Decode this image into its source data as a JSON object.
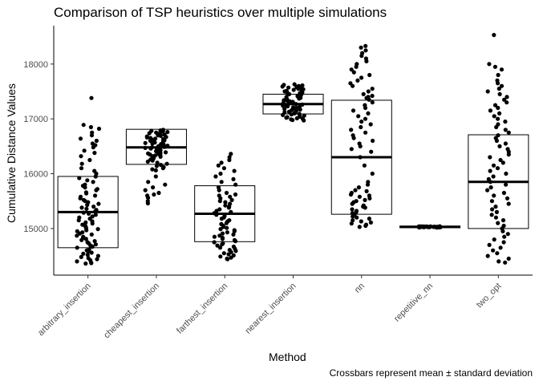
{
  "chart_data": {
    "type": "jitter-crossbar",
    "title": "Comparison of TSP heuristics over multiple simulations",
    "xlabel": "Method",
    "ylabel": "Cumulative Distance Values",
    "caption": "Crossbars represent mean ± standard deviation",
    "ylim": [
      14150,
      18700
    ],
    "yticks": [
      15000,
      16000,
      17000,
      18000
    ],
    "yticklabels": [
      "15000",
      "16000",
      "17000",
      "18000"
    ],
    "grid": false,
    "point_color": "#000000",
    "categories": [
      "arbitrary_insertion",
      "cheapest_insertion",
      "farthest_insertion",
      "nearest_insertion",
      "nn",
      "repetitive_nn",
      "two_opt"
    ],
    "crossbars": [
      {
        "method": "arbitrary_insertion",
        "mean": 15300,
        "ymin": 14650,
        "ymax": 15950
      },
      {
        "method": "cheapest_insertion",
        "mean": 16480,
        "ymin": 16170,
        "ymax": 16810
      },
      {
        "method": "farthest_insertion",
        "mean": 15270,
        "ymin": 14760,
        "ymax": 15780
      },
      {
        "method": "nearest_insertion",
        "mean": 17270,
        "ymin": 17090,
        "ymax": 17450
      },
      {
        "method": "nn",
        "mean": 16300,
        "ymin": 15260,
        "ymax": 17340
      },
      {
        "method": "repetitive_nn",
        "mean": 15030,
        "ymin": 15015,
        "ymax": 15045
      },
      {
        "method": "two_opt",
        "mean": 15850,
        "ymin": 15000,
        "ymax": 16710
      }
    ],
    "points": [
      {
        "method": "arbitrary_insertion",
        "values": [
          17380,
          16890,
          16850,
          16820,
          16750,
          16700,
          16640,
          16600,
          16550,
          16520,
          16480,
          16420,
          16380,
          16320,
          16250,
          16180,
          16100,
          16050,
          16000,
          15950,
          15920,
          15880,
          15850,
          15800,
          15780,
          15750,
          15720,
          15700,
          15660,
          15640,
          15600,
          15580,
          15550,
          15520,
          15500,
          15480,
          15450,
          15430,
          15400,
          15380,
          15360,
          15340,
          15310,
          15290,
          15270,
          15250,
          15220,
          15200,
          15180,
          15150,
          15130,
          15110,
          15090,
          15070,
          15050,
          15030,
          15010,
          14990,
          14970,
          14950,
          14930,
          14910,
          14890,
          14870,
          14850,
          14830,
          14810,
          14790,
          14770,
          14750,
          14730,
          14710,
          14690,
          14670,
          14650,
          14620,
          14600,
          14580,
          14560,
          14540,
          14520,
          14500,
          14480,
          14460,
          14440,
          14420,
          14400,
          14380,
          14370,
          14360
        ]
      },
      {
        "method": "cheapest_insertion",
        "values": [
          16800,
          16790,
          16780,
          16770,
          16760,
          16750,
          16740,
          16730,
          16720,
          16710,
          16700,
          16690,
          16680,
          16670,
          16660,
          16650,
          16640,
          16630,
          16620,
          16610,
          16600,
          16590,
          16580,
          16570,
          16560,
          16550,
          16540,
          16530,
          16520,
          16510,
          16500,
          16490,
          16480,
          16470,
          16460,
          16450,
          16440,
          16430,
          16420,
          16410,
          16400,
          16390,
          16380,
          16370,
          16360,
          16350,
          16340,
          16330,
          16320,
          16310,
          16300,
          16280,
          16260,
          16240,
          16220,
          16200,
          16180,
          16160,
          16140,
          16120,
          16100,
          16080,
          16060,
          15950,
          15850,
          15800,
          15750,
          15700,
          15650,
          15620,
          15600,
          15560,
          15500,
          15460
        ]
      },
      {
        "method": "farthest_insertion",
        "values": [
          16360,
          16300,
          16250,
          16200,
          16150,
          16100,
          16050,
          16000,
          15950,
          15900,
          15850,
          15800,
          15750,
          15700,
          15650,
          15620,
          15600,
          15580,
          15550,
          15520,
          15500,
          15480,
          15450,
          15420,
          15400,
          15380,
          15350,
          15320,
          15300,
          15280,
          15250,
          15230,
          15200,
          15180,
          15150,
          15130,
          15100,
          15080,
          15050,
          15030,
          15010,
          14990,
          14970,
          14950,
          14930,
          14910,
          14890,
          14870,
          14850,
          14830,
          14810,
          14790,
          14770,
          14750,
          14730,
          14710,
          14690,
          14670,
          14650,
          14630,
          14610,
          14590,
          14570,
          14550,
          14530,
          14510,
          14490,
          14470,
          14450,
          14440
        ]
      },
      {
        "method": "nearest_insertion",
        "values": [
          17630,
          17620,
          17610,
          17600,
          17590,
          17580,
          17570,
          17560,
          17550,
          17540,
          17530,
          17520,
          17510,
          17500,
          17490,
          17480,
          17470,
          17460,
          17450,
          17440,
          17430,
          17420,
          17410,
          17400,
          17390,
          17380,
          17370,
          17360,
          17350,
          17340,
          17330,
          17320,
          17310,
          17300,
          17290,
          17280,
          17270,
          17260,
          17250,
          17240,
          17230,
          17220,
          17210,
          17200,
          17190,
          17180,
          17170,
          17160,
          17150,
          17140,
          17130,
          17120,
          17110,
          17100,
          17090,
          17080,
          17070,
          17060,
          17050,
          17040,
          17030,
          17020,
          17010,
          17000,
          16990,
          16980,
          16970
        ]
      },
      {
        "method": "nn",
        "values": [
          18330,
          18300,
          18250,
          18200,
          18150,
          18100,
          18050,
          18000,
          17950,
          17900,
          17850,
          17800,
          17750,
          17700,
          17650,
          17600,
          17550,
          17500,
          17450,
          17420,
          17400,
          17380,
          17350,
          17300,
          17250,
          17200,
          17150,
          17100,
          17050,
          17000,
          16950,
          16900,
          16850,
          16800,
          16750,
          16700,
          16650,
          16600,
          16550,
          16500,
          16450,
          16400,
          16300,
          16150,
          16000,
          15850,
          15800,
          15750,
          15700,
          15680,
          15650,
          15620,
          15600,
          15580,
          15550,
          15520,
          15500,
          15480,
          15450,
          15420,
          15400,
          15380,
          15350,
          15320,
          15300,
          15280,
          15250,
          15220,
          15200,
          15180,
          15150,
          15130,
          15110,
          15090,
          15070,
          15050,
          15030
        ]
      },
      {
        "method": "repetitive_nn",
        "values": [
          15040,
          15038,
          15036,
          15034,
          15032,
          15030,
          15028,
          15026,
          15024,
          15022,
          15020,
          15035,
          15033,
          15031,
          15029,
          15027,
          15025,
          15023,
          15021,
          15037,
          15039,
          15041,
          15019,
          15030,
          15032,
          15028,
          15034,
          15026,
          15036,
          15024
        ]
      },
      {
        "method": "two_opt",
        "values": [
          18530,
          18000,
          17950,
          17900,
          17800,
          17700,
          17650,
          17600,
          17550,
          17500,
          17450,
          17400,
          17350,
          17300,
          17250,
          17200,
          17150,
          17100,
          17050,
          17000,
          16950,
          16900,
          16850,
          16800,
          16750,
          16700,
          16650,
          16600,
          16550,
          16500,
          16450,
          16400,
          16350,
          16300,
          16250,
          16200,
          16150,
          16100,
          16050,
          16000,
          15950,
          15900,
          15850,
          15800,
          15750,
          15700,
          15650,
          15600,
          15550,
          15500,
          15450,
          15400,
          15350,
          15300,
          15250,
          15200,
          15150,
          15100,
          15050,
          15000,
          14950,
          14900,
          14850,
          14800,
          14750,
          14700,
          14650,
          14600,
          14550,
          14500,
          14450,
          14400,
          14380
        ]
      }
    ]
  }
}
